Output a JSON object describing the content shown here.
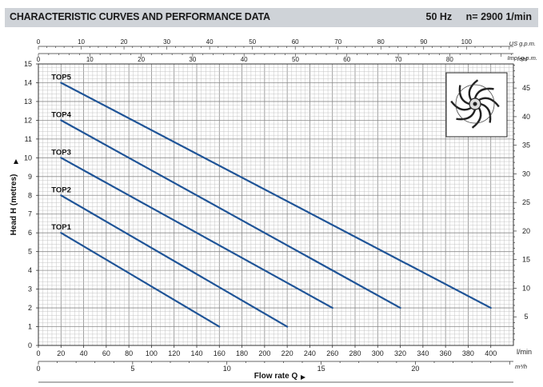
{
  "header": {
    "title": "CHARACTERISTIC CURVES AND PERFORMANCE DATA",
    "frequency": "50 Hz",
    "speed": "n= 2900  1/min"
  },
  "axes": {
    "y_label": "Head H (metres)",
    "x_label": "Flow rate  Q",
    "right_unit": "feet",
    "bottom_unit_primary": "l/min",
    "bottom_unit_secondary": "m³/h",
    "top_unit_us": "US g.p.m.",
    "top_unit_imp": "Imp. g.p.m."
  },
  "colors": {
    "curve": "#1f5497",
    "grid": "#9a9a9a",
    "header_bg": "#cfd3d8"
  },
  "icon": "impeller-icon",
  "chart_data": {
    "type": "line",
    "x_unit": "l/min",
    "y_unit": "m",
    "xlim": [
      0,
      420
    ],
    "ylim": [
      0,
      15
    ],
    "grid": true,
    "x_ticks": [
      0,
      20,
      40,
      60,
      80,
      100,
      120,
      140,
      160,
      180,
      200,
      220,
      240,
      260,
      280,
      300,
      320,
      340,
      360,
      380,
      400
    ],
    "y_ticks": [
      0,
      1,
      2,
      3,
      4,
      5,
      6,
      7,
      8,
      9,
      10,
      11,
      12,
      13,
      14,
      15
    ],
    "secondary_axes": {
      "m3h_ticks": [
        0,
        5,
        10,
        15,
        20
      ],
      "feet_ticks": [
        5,
        10,
        15,
        20,
        25,
        30,
        35,
        40,
        45
      ],
      "us_gpm_ticks": [
        0,
        10,
        20,
        30,
        40,
        50,
        60,
        70,
        80,
        90,
        100
      ],
      "imp_gpm_ticks": [
        0,
        10,
        20,
        30,
        40,
        50,
        60,
        70,
        80
      ]
    },
    "series": [
      {
        "name": "TOP1",
        "x": [
          20,
          160
        ],
        "y": [
          6,
          1
        ]
      },
      {
        "name": "TOP2",
        "x": [
          20,
          220
        ],
        "y": [
          8,
          1
        ]
      },
      {
        "name": "TOP3",
        "x": [
          20,
          260
        ],
        "y": [
          10,
          2
        ]
      },
      {
        "name": "TOP4",
        "x": [
          20,
          320
        ],
        "y": [
          12,
          2
        ]
      },
      {
        "name": "TOP5",
        "x": [
          20,
          400
        ],
        "y": [
          14,
          2
        ]
      }
    ]
  }
}
